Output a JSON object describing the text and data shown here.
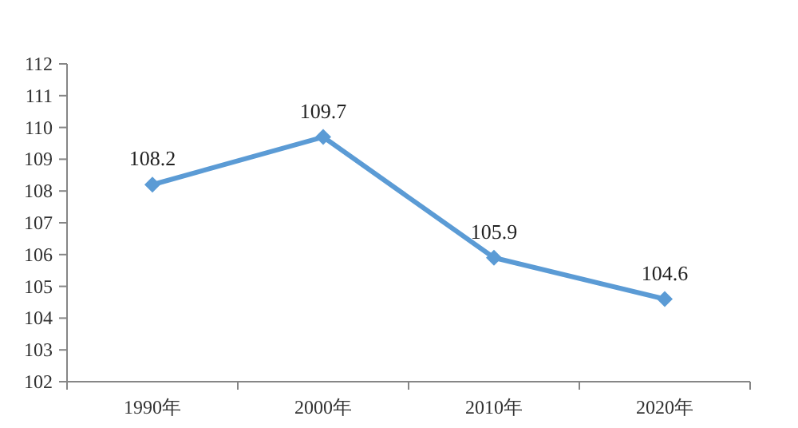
{
  "chart_data": {
    "type": "line",
    "categories": [
      "1990年",
      "2000年",
      "2010年",
      "2020年"
    ],
    "series": [
      {
        "color": "#5b9bd5",
        "values": [
          108.2,
          109.7,
          105.9,
          104.6
        ]
      }
    ],
    "ylim": [
      102,
      112
    ],
    "yticks": [
      102,
      103,
      104,
      105,
      106,
      107,
      108,
      109,
      110,
      111,
      112
    ],
    "data_labels": true,
    "marker": "diamond"
  }
}
